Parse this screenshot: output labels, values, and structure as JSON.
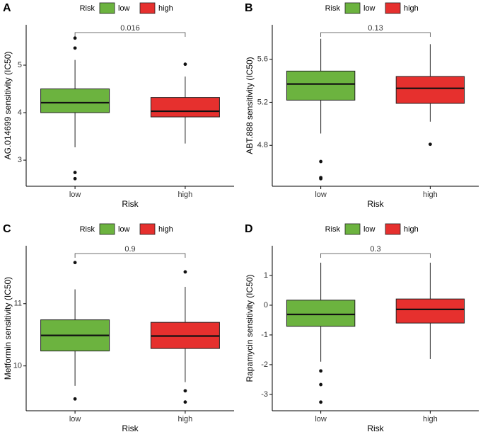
{
  "chart_data": [
    {
      "type": "box",
      "panel": "A",
      "legend_title": "Risk",
      "ylabel": "AG.014699 sensitivity (IC50)",
      "xlabel": "Risk",
      "categories": [
        "low",
        "high"
      ],
      "annotation": "0.016",
      "ylim": [
        2.45,
        5.85
      ],
      "yticks": [
        3,
        4,
        5
      ],
      "series": [
        {
          "name": "low",
          "color": "#6cb33f",
          "whisker_low": 3.27,
          "q1": 4.0,
          "median": 4.21,
          "q3": 4.5,
          "whisker_high": 5.11,
          "outliers": [
            5.57,
            5.36,
            2.74,
            2.61
          ]
        },
        {
          "name": "high",
          "color": "#e6302e",
          "whisker_low": 3.35,
          "q1": 3.91,
          "median": 4.03,
          "q3": 4.32,
          "whisker_high": 4.76,
          "outliers": [
            5.02
          ]
        }
      ]
    },
    {
      "type": "box",
      "panel": "B",
      "legend_title": "Risk",
      "ylabel": "ABT.888 sensitivity (IC50)",
      "xlabel": "Risk",
      "categories": [
        "low",
        "high"
      ],
      "annotation": "0.13",
      "ylim": [
        4.42,
        5.92
      ],
      "yticks": [
        4.8,
        5.2,
        5.6
      ],
      "series": [
        {
          "name": "low",
          "color": "#6cb33f",
          "whisker_low": 4.91,
          "q1": 5.22,
          "median": 5.37,
          "q3": 5.49,
          "whisker_high": 5.79,
          "outliers": [
            4.65,
            4.5,
            4.49
          ]
        },
        {
          "name": "high",
          "color": "#e6302e",
          "whisker_low": 5.02,
          "q1": 5.19,
          "median": 5.33,
          "q3": 5.44,
          "whisker_high": 5.74,
          "outliers": [
            4.81
          ]
        }
      ]
    },
    {
      "type": "box",
      "panel": "C",
      "legend_title": "Risk",
      "ylabel": "Metformin sensitivity (IC50)",
      "xlabel": "Risk",
      "categories": [
        "low",
        "high"
      ],
      "annotation": "0.9",
      "ylim": [
        9.28,
        11.93
      ],
      "yticks": [
        10,
        11
      ],
      "series": [
        {
          "name": "low",
          "color": "#6cb33f",
          "whisker_low": 9.68,
          "q1": 10.24,
          "median": 10.49,
          "q3": 10.74,
          "whisker_high": 11.23,
          "outliers": [
            11.66,
            9.47
          ]
        },
        {
          "name": "high",
          "color": "#e6302e",
          "whisker_low": 9.74,
          "q1": 10.28,
          "median": 10.48,
          "q3": 10.7,
          "whisker_high": 11.27,
          "outliers": [
            11.51,
            9.6,
            9.42
          ]
        }
      ]
    },
    {
      "type": "box",
      "panel": "D",
      "legend_title": "Risk",
      "ylabel": "Rapamycin sensitivity (IC50)",
      "xlabel": "Risk",
      "categories": [
        "low",
        "high"
      ],
      "annotation": "0.3",
      "ylim": [
        -3.55,
        2.0
      ],
      "yticks": [
        -3,
        -2,
        -1,
        0,
        1
      ],
      "series": [
        {
          "name": "low",
          "color": "#6cb33f",
          "whisker_low": -1.9,
          "q1": -0.71,
          "median": -0.31,
          "q3": 0.17,
          "whisker_high": 1.43,
          "outliers": [
            -2.21,
            -2.67,
            -3.26
          ]
        },
        {
          "name": "high",
          "color": "#e6302e",
          "whisker_low": -1.81,
          "q1": -0.6,
          "median": -0.14,
          "q3": 0.21,
          "whisker_high": 1.43,
          "outliers": []
        }
      ]
    }
  ]
}
